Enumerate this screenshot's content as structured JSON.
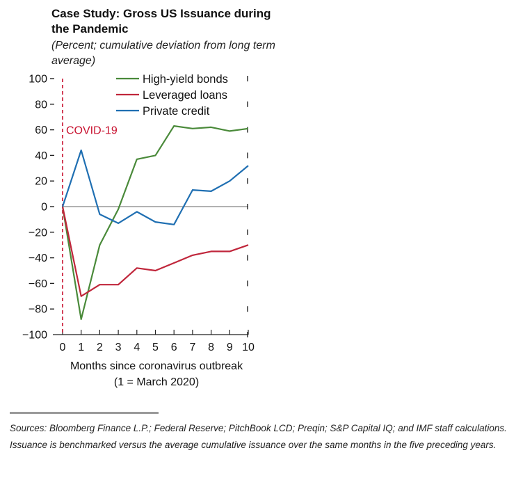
{
  "chart_data": {
    "type": "line",
    "title": "Case Study: Gross US Issuance during the Pandemic",
    "subtitle": "(Percent; cumulative deviation from long term average)",
    "xlabel_line1": "Months since coronavirus outbreak",
    "xlabel_line2": "(1 = March 2020)",
    "ylabel": "",
    "x": [
      0,
      1,
      2,
      3,
      4,
      5,
      6,
      7,
      8,
      9,
      10
    ],
    "xlim": [
      0,
      10
    ],
    "ylim": [
      -100,
      100
    ],
    "yticks": [
      100,
      80,
      60,
      40,
      20,
      0,
      -20,
      -40,
      -60,
      -80,
      -100
    ],
    "ytick_labels": [
      "100",
      "80",
      "60",
      "40",
      "20",
      "0",
      "−20",
      "−40",
      "−60",
      "−80",
      "−100"
    ],
    "xtick_labels": [
      "0",
      "1",
      "2",
      "3",
      "4",
      "5",
      "6",
      "7",
      "8",
      "9",
      "10"
    ],
    "zero_line": true,
    "legend_position": "top-right",
    "annotation": {
      "label": "COVID-19",
      "x": 0,
      "color": "#c8102e"
    },
    "series": [
      {
        "name": "High-yield bonds",
        "color": "#4a8a3a",
        "values": [
          0,
          -88,
          -30,
          -2,
          37,
          40,
          63,
          61,
          62,
          59,
          61
        ]
      },
      {
        "name": "Leveraged loans",
        "color": "#c0263b",
        "values": [
          0,
          -70,
          -61,
          -61,
          -48,
          -50,
          -44,
          -38,
          -35,
          -35,
          -30
        ]
      },
      {
        "name": "Private credit",
        "color": "#1f6fb2",
        "values": [
          0,
          44,
          -6,
          -13,
          -4,
          -12,
          -14,
          13,
          12,
          20,
          32
        ]
      }
    ]
  },
  "footer": {
    "source_text": "Sources: Bloomberg Finance L.P.; Federal Reserve; PitchBook LCD; Preqin; S&P Capital IQ; and IMF staff calculations. Issuance is benchmarked versus the average cumulative issuance over the same months in the five preceding years."
  }
}
